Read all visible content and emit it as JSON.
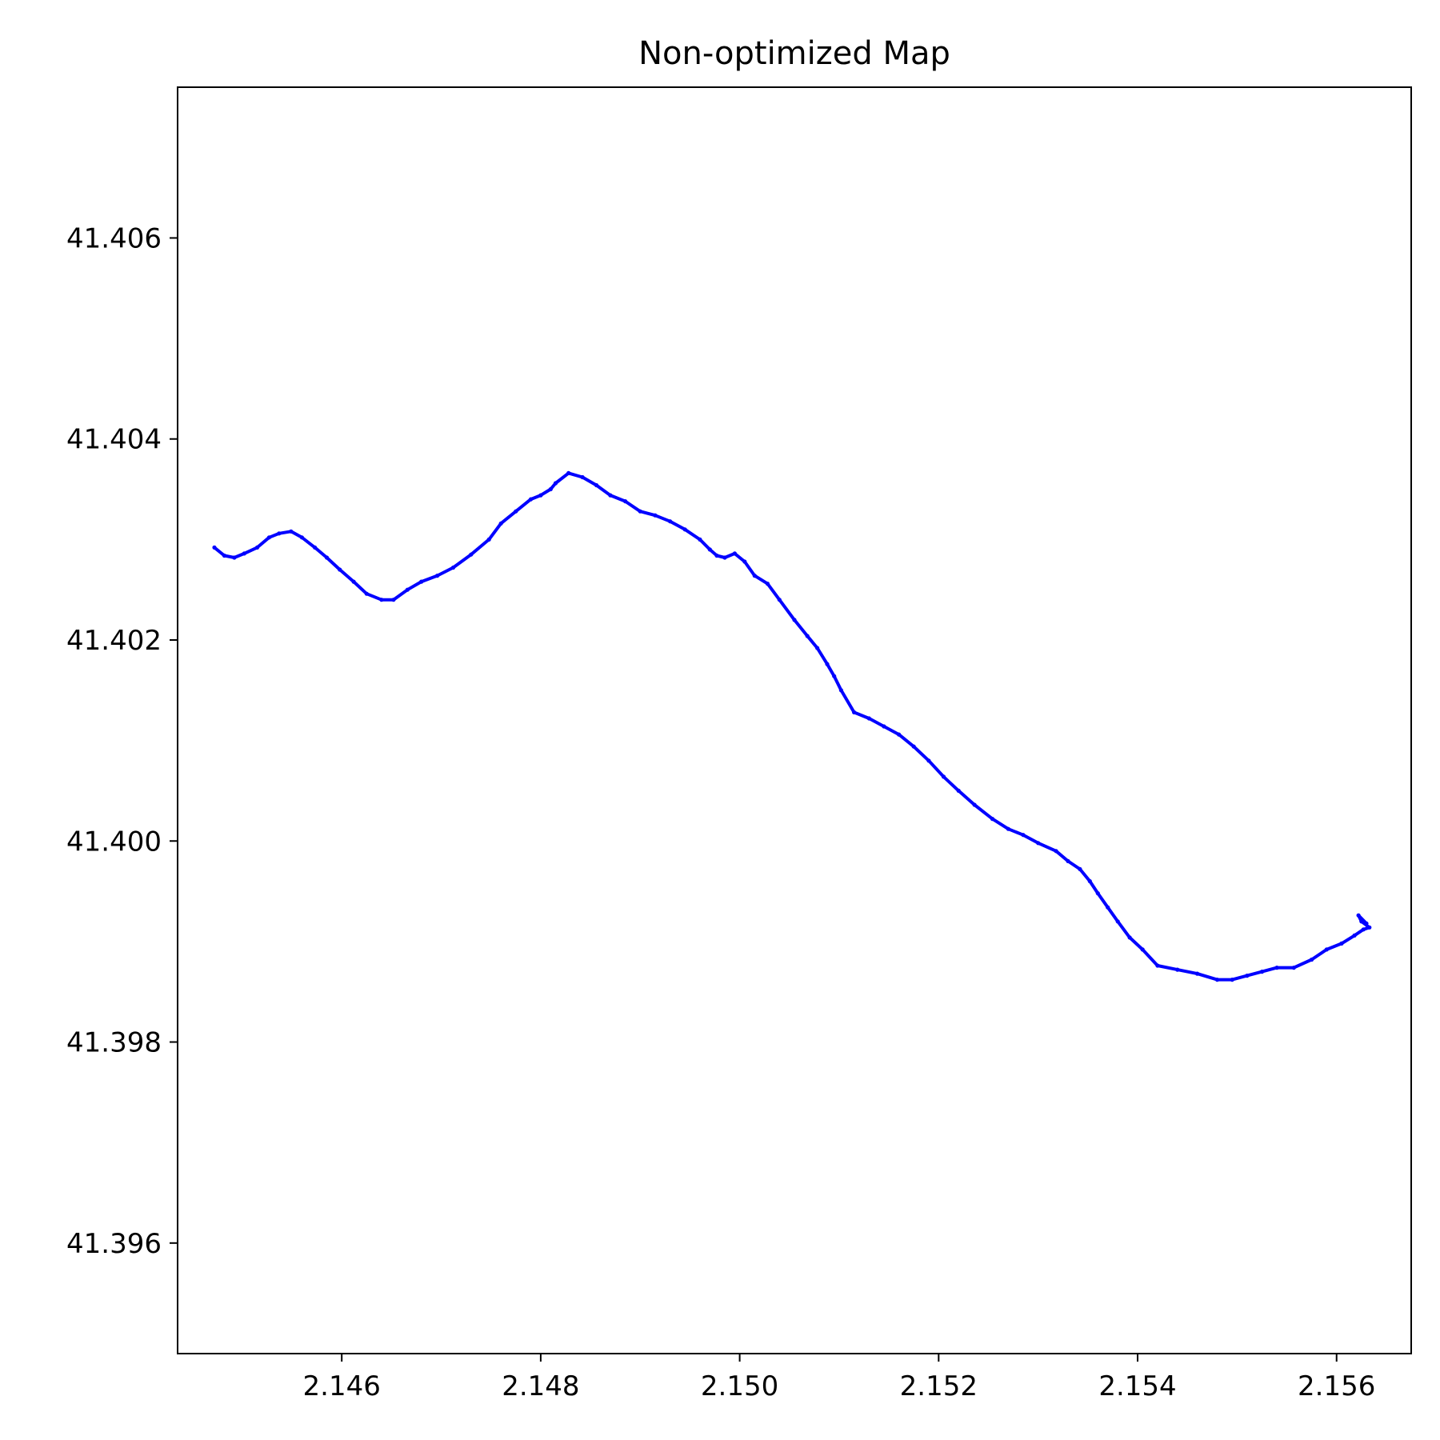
{
  "chart_data": {
    "type": "line",
    "title": "Non-optimized Map",
    "xlabel": "",
    "ylabel": "",
    "xlim": [
      2.14435,
      2.15675
    ],
    "ylim": [
      41.3949,
      41.4075
    ],
    "grid": false,
    "x_ticks": [
      "2.146",
      "2.148",
      "2.150",
      "2.152",
      "2.154",
      "2.156"
    ],
    "y_ticks": [
      "41.396",
      "41.398",
      "41.400",
      "41.402",
      "41.404",
      "41.406"
    ],
    "series": [
      {
        "color": "#0000ff",
        "x": [
          2.14472,
          2.14482,
          2.14492,
          2.14502,
          2.14515,
          2.14527,
          2.14537,
          2.14549,
          2.1456,
          2.14573,
          2.14585,
          2.14598,
          2.14612,
          2.14625,
          2.1464,
          2.14652,
          2.14666,
          2.1468,
          2.14696,
          2.14712,
          2.1473,
          2.14748,
          2.1476,
          2.14775,
          2.1479,
          2.148,
          2.1481,
          2.14815,
          2.14828,
          2.14842,
          2.14856,
          2.1487,
          2.14885,
          2.149,
          2.14915,
          2.1493,
          2.14945,
          2.1496,
          2.1497,
          2.14977,
          2.14985,
          2.14995,
          2.15005,
          2.15015,
          2.15028,
          2.1504,
          2.15055,
          2.15068,
          2.15078,
          2.15088,
          2.15095,
          2.15102,
          2.15115,
          2.1513,
          2.15145,
          2.1516,
          2.15175,
          2.1519,
          2.15205,
          2.1522,
          2.15236,
          2.15254,
          2.1527,
          2.15285,
          2.153,
          2.15318,
          2.1533,
          2.15342,
          2.15352,
          2.1536,
          2.1537,
          2.1538,
          2.15392,
          2.15405,
          2.1542,
          2.1544,
          2.1546,
          2.1548,
          2.15495,
          2.1551,
          2.15525,
          2.1554,
          2.15557,
          2.15575,
          2.1559,
          2.15605,
          2.15618,
          2.15627,
          2.15633,
          2.15625,
          2.15622,
          2.1563
        ],
        "y": [
          41.40292,
          41.40284,
          41.40282,
          41.40286,
          41.40292,
          41.40302,
          41.40306,
          41.40308,
          41.40302,
          41.40292,
          41.40282,
          41.4027,
          41.40258,
          41.40246,
          41.4024,
          41.4024,
          41.4025,
          41.40258,
          41.40264,
          41.40272,
          41.40285,
          41.403,
          41.40316,
          41.40328,
          41.4034,
          41.40344,
          41.4035,
          41.40356,
          41.40366,
          41.40362,
          41.40354,
          41.40344,
          41.40338,
          41.40328,
          41.40324,
          41.40318,
          41.4031,
          41.403,
          41.4029,
          41.40284,
          41.40282,
          41.40286,
          41.40278,
          41.40264,
          41.40256,
          41.4024,
          41.4022,
          41.40204,
          41.40192,
          41.40176,
          41.40164,
          41.4015,
          41.40128,
          41.40122,
          41.40114,
          41.40106,
          41.40094,
          41.4008,
          41.40064,
          41.4005,
          41.40036,
          41.40022,
          41.40012,
          41.40006,
          41.39998,
          41.3999,
          41.3998,
          41.39972,
          41.3996,
          41.39948,
          41.39934,
          41.3992,
          41.39904,
          41.39892,
          41.39876,
          41.39872,
          41.39868,
          41.39862,
          41.39862,
          41.39866,
          41.3987,
          41.39874,
          41.39874,
          41.39882,
          41.39892,
          41.39898,
          41.39906,
          41.39912,
          41.39914,
          41.3992,
          41.39926,
          41.39918
        ]
      }
    ]
  }
}
